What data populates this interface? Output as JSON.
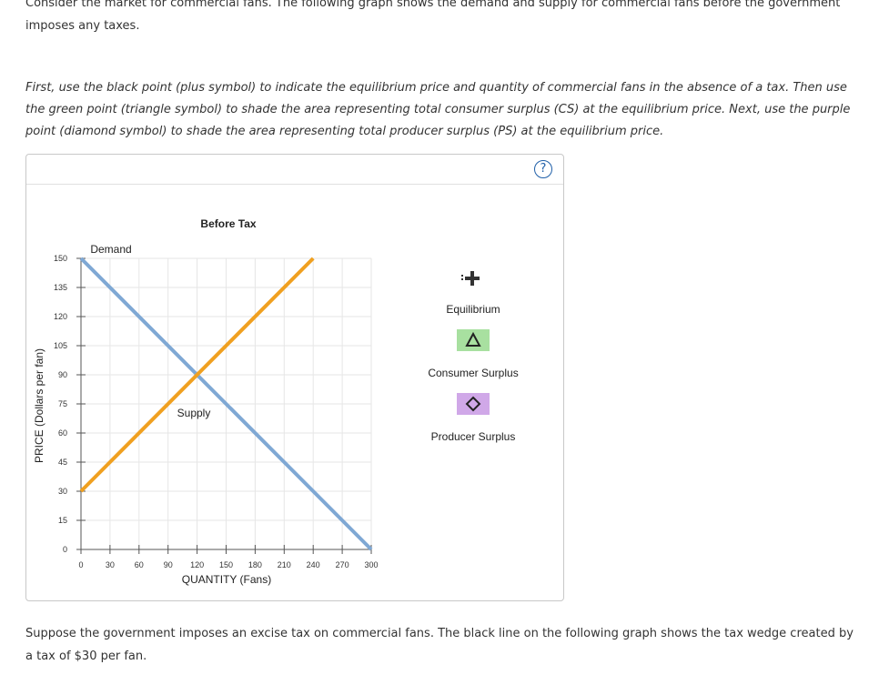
{
  "intro_text": "Consider the market for commercial fans. The following graph shows the demand and supply for commercial fans before the government imposes any taxes.",
  "instructions": "First, use the black point (plus symbol) to indicate the equilibrium price and quantity of commercial fans in the absence of a tax. Then use the green point (triangle symbol) to shade the area representing total consumer surplus (CS) at the equilibrium price. Next, use the purple point (diamond symbol) to shade the area representing total producer surplus (PS) at the equilibrium price.",
  "help_label": "?",
  "outro_text": "Suppose the government imposes an excise tax on commercial fans. The black line on the following graph shows the tax wedge created by a tax of $30 per fan.",
  "tools": {
    "equilibrium_label": "Equilibrium",
    "consumer_surplus_label": "Consumer Surplus",
    "producer_surplus_label": "Producer Surplus",
    "colors": {
      "equilibrium": "#000000",
      "consumer_surplus": "#a8e0a0",
      "producer_surplus": "#d0a8e8"
    },
    "icons": {
      "equilibrium": "plus-icon",
      "consumer_surplus": "triangle-icon",
      "producer_surplus": "diamond-icon"
    }
  },
  "chart_data": {
    "type": "line",
    "title": "Before Tax",
    "xlabel": "QUANTITY (Fans)",
    "ylabel": "PRICE (Dollars per fan)",
    "xlim": [
      0,
      300
    ],
    "ylim": [
      0,
      150
    ],
    "xticks": [
      0,
      30,
      60,
      90,
      120,
      150,
      180,
      210,
      240,
      270,
      300
    ],
    "yticks": [
      0,
      15,
      30,
      45,
      60,
      75,
      90,
      105,
      120,
      135,
      150
    ],
    "grid": true,
    "series": [
      {
        "name": "Demand",
        "color": "#7fa8d4",
        "x": [
          0,
          300
        ],
        "y": [
          150,
          0
        ]
      },
      {
        "name": "Supply",
        "color": "#f0a020",
        "x": [
          0,
          240
        ],
        "y": [
          30,
          150
        ]
      }
    ]
  }
}
